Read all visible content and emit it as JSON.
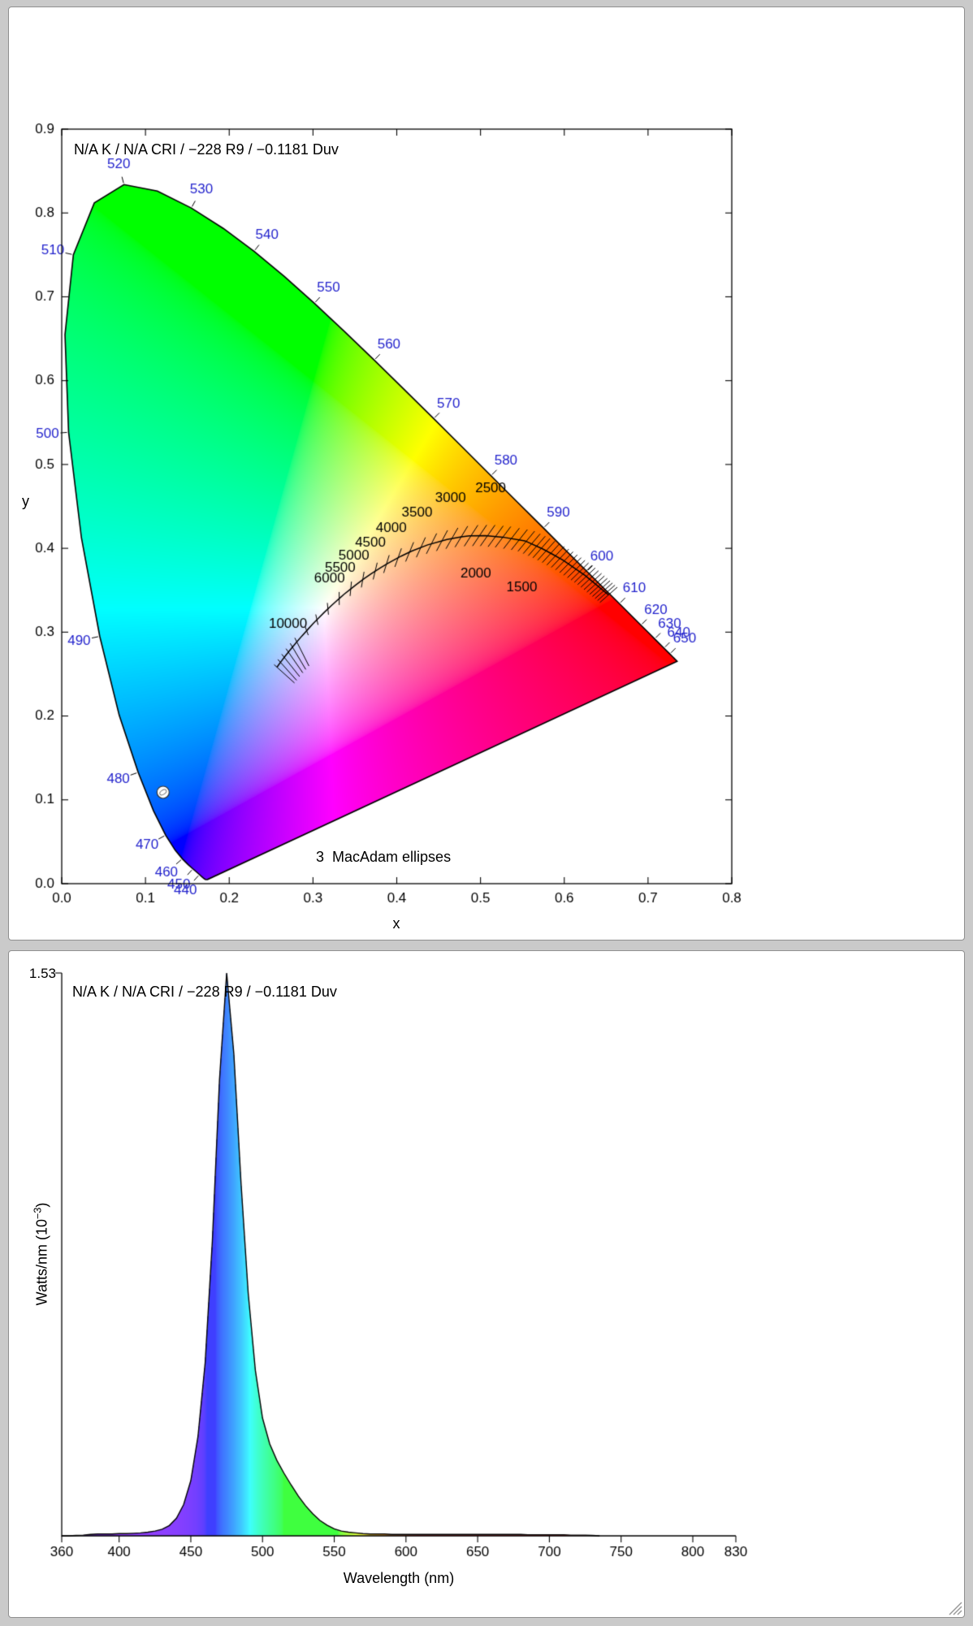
{
  "colors": {
    "page_background": "#cacaca",
    "panel_background": "#ffffff",
    "panel_border": "#8f8f8f",
    "wavelength_label_color": "#2222cc",
    "axis_color": "#000000"
  },
  "chart_data": [
    {
      "type": "scatter",
      "name": "CIE 1931 chromaticity diagram",
      "title": "N/A K / N/A CRI / −228 R9 / −0.1181 Duv",
      "xlabel": "x",
      "ylabel": "y",
      "annotation": "3  MacAdam ellipses",
      "xlim": [
        0.0,
        0.8
      ],
      "ylim": [
        0.0,
        0.9
      ],
      "xticks": [
        0.0,
        0.1,
        0.2,
        0.3,
        0.4,
        0.5,
        0.6,
        0.7,
        0.8
      ],
      "yticks": [
        0.0,
        0.1,
        0.2,
        0.3,
        0.4,
        0.5,
        0.6,
        0.7,
        0.8,
        0.9
      ],
      "grid": false,
      "point": {
        "x": 0.121,
        "y": 0.109
      },
      "label_color": "#2222cc",
      "wavelength_labels": [
        440,
        450,
        460,
        470,
        480,
        490,
        500,
        510,
        520,
        530,
        540,
        550,
        560,
        570,
        580,
        590,
        600,
        610,
        620,
        630,
        640,
        650
      ],
      "cct_labels": [
        [
          1500,
          "below"
        ],
        [
          2000,
          "below"
        ],
        [
          2500,
          "above"
        ],
        [
          3000,
          "above"
        ],
        [
          3500,
          "above"
        ],
        [
          4000,
          "above"
        ],
        [
          4500,
          "above"
        ],
        [
          5000,
          "above"
        ],
        [
          5500,
          "above"
        ],
        [
          6000,
          "above"
        ],
        [
          10000,
          "above"
        ]
      ],
      "isotherm_mired_range": [
        120,
        1000
      ],
      "isotherm_mired_step": 20,
      "long_isotherms_mired": [
        50,
        60,
        70,
        80,
        90,
        100
      ],
      "spectral_locus": [
        [
          380,
          0.1741,
          0.005
        ],
        [
          385,
          0.174,
          0.005
        ],
        [
          390,
          0.1738,
          0.0049
        ],
        [
          395,
          0.1736,
          0.0049
        ],
        [
          400,
          0.1733,
          0.0048
        ],
        [
          405,
          0.173,
          0.0048
        ],
        [
          410,
          0.1726,
          0.0048
        ],
        [
          415,
          0.1721,
          0.0048
        ],
        [
          420,
          0.1714,
          0.0051
        ],
        [
          425,
          0.1703,
          0.0058
        ],
        [
          430,
          0.1689,
          0.0069
        ],
        [
          435,
          0.1669,
          0.0086
        ],
        [
          440,
          0.1644,
          0.0109
        ],
        [
          445,
          0.1611,
          0.0138
        ],
        [
          450,
          0.1566,
          0.0177
        ],
        [
          455,
          0.151,
          0.0227
        ],
        [
          460,
          0.144,
          0.0297
        ],
        [
          465,
          0.1355,
          0.0399
        ],
        [
          470,
          0.1241,
          0.0578
        ],
        [
          475,
          0.1096,
          0.0868
        ],
        [
          480,
          0.0913,
          0.1327
        ],
        [
          485,
          0.0687,
          0.2007
        ],
        [
          490,
          0.0454,
          0.295
        ],
        [
          495,
          0.0235,
          0.4127
        ],
        [
          500,
          0.0082,
          0.5384
        ],
        [
          505,
          0.0039,
          0.6548
        ],
        [
          510,
          0.0139,
          0.7502
        ],
        [
          515,
          0.0389,
          0.812
        ],
        [
          520,
          0.0743,
          0.8338
        ],
        [
          525,
          0.1142,
          0.8262
        ],
        [
          530,
          0.1547,
          0.8059
        ],
        [
          535,
          0.1929,
          0.7816
        ],
        [
          540,
          0.2296,
          0.7543
        ],
        [
          545,
          0.2658,
          0.7243
        ],
        [
          550,
          0.3016,
          0.6923
        ],
        [
          555,
          0.3373,
          0.6589
        ],
        [
          560,
          0.3731,
          0.6245
        ],
        [
          565,
          0.4087,
          0.5896
        ],
        [
          570,
          0.4441,
          0.5547
        ],
        [
          575,
          0.4788,
          0.5202
        ],
        [
          580,
          0.5125,
          0.4866
        ],
        [
          585,
          0.5448,
          0.4544
        ],
        [
          590,
          0.5752,
          0.4242
        ],
        [
          595,
          0.6029,
          0.3965
        ],
        [
          600,
          0.627,
          0.3725
        ],
        [
          605,
          0.6482,
          0.3514
        ],
        [
          610,
          0.6658,
          0.334
        ],
        [
          615,
          0.6801,
          0.3197
        ],
        [
          620,
          0.6915,
          0.3083
        ],
        [
          625,
          0.7006,
          0.2993
        ],
        [
          630,
          0.7079,
          0.292
        ],
        [
          635,
          0.714,
          0.2859
        ],
        [
          640,
          0.719,
          0.2809
        ],
        [
          645,
          0.723,
          0.277
        ],
        [
          650,
          0.726,
          0.274
        ],
        [
          655,
          0.7283,
          0.2717
        ],
        [
          660,
          0.73,
          0.27
        ],
        [
          665,
          0.7311,
          0.2689
        ],
        [
          670,
          0.732,
          0.268
        ],
        [
          675,
          0.7327,
          0.2673
        ],
        [
          680,
          0.7334,
          0.2666
        ],
        [
          685,
          0.734,
          0.266
        ],
        [
          690,
          0.7344,
          0.2656
        ],
        [
          695,
          0.7346,
          0.2654
        ],
        [
          700,
          0.7347,
          0.2653
        ]
      ],
      "planckian_locus": [
        [
          1000,
          0.6528,
          0.3444
        ],
        [
          1200,
          0.625,
          0.3676
        ],
        [
          1400,
          0.5984,
          0.3859
        ],
        [
          1500,
          0.5857,
          0.3931
        ],
        [
          1600,
          0.574,
          0.3994
        ],
        [
          1800,
          0.553,
          0.4089
        ],
        [
          2000,
          0.5267,
          0.4133
        ],
        [
          2200,
          0.5056,
          0.4152
        ],
        [
          2400,
          0.4868,
          0.4148
        ],
        [
          2500,
          0.477,
          0.4137
        ],
        [
          2700,
          0.4599,
          0.4106
        ],
        [
          3000,
          0.4369,
          0.4041
        ],
        [
          3300,
          0.4173,
          0.3965
        ],
        [
          3500,
          0.4053,
          0.3907
        ],
        [
          3800,
          0.3898,
          0.3823
        ],
        [
          4000,
          0.3805,
          0.3768
        ],
        [
          4300,
          0.3692,
          0.3694
        ],
        [
          4500,
          0.3608,
          0.3636
        ],
        [
          4800,
          0.3512,
          0.3564
        ],
        [
          5000,
          0.3451,
          0.3516
        ],
        [
          5300,
          0.337,
          0.3451
        ],
        [
          5500,
          0.3325,
          0.3411
        ],
        [
          5800,
          0.3261,
          0.3355
        ],
        [
          6000,
          0.3221,
          0.3318
        ],
        [
          6500,
          0.3135,
          0.3237
        ],
        [
          7000,
          0.3064,
          0.3166
        ],
        [
          7500,
          0.3004,
          0.3104
        ],
        [
          8000,
          0.2952,
          0.3048
        ],
        [
          9000,
          0.2869,
          0.2956
        ],
        [
          10000,
          0.2807,
          0.2884
        ],
        [
          11000,
          0.2759,
          0.2827
        ],
        [
          12000,
          0.2721,
          0.278
        ],
        [
          14000,
          0.2663,
          0.2707
        ],
        [
          16000,
          0.2622,
          0.2653
        ],
        [
          18000,
          0.2592,
          0.2613
        ],
        [
          20000,
          0.257,
          0.2582
        ]
      ]
    },
    {
      "type": "area",
      "name": "Spectral power distribution",
      "title": "N/A K / N/A CRI / −228 R9 / −0.1181 Duv",
      "xlabel": "Wavelength (nm)",
      "ylabel": "Watts/nm (10^-3)",
      "ylabel_main": "Watts/nm (10",
      "ylabel_sup": "−3",
      "ylabel_end": ")",
      "ymax_label": "1.53",
      "xlim": [
        360,
        830
      ],
      "ylim": [
        0,
        1.53
      ],
      "xticks": [
        360,
        400,
        450,
        500,
        550,
        600,
        650,
        700,
        750,
        800,
        830
      ],
      "grid": false,
      "spd": [
        [
          360,
          0
        ],
        [
          365,
          0
        ],
        [
          370,
          0.001
        ],
        [
          375,
          0.002
        ],
        [
          380,
          0.004
        ],
        [
          385,
          0.005
        ],
        [
          390,
          0.005
        ],
        [
          395,
          0.005
        ],
        [
          400,
          0.006
        ],
        [
          405,
          0.006
        ],
        [
          410,
          0.007
        ],
        [
          415,
          0.008
        ],
        [
          420,
          0.01
        ],
        [
          425,
          0.013
        ],
        [
          430,
          0.018
        ],
        [
          435,
          0.028
        ],
        [
          440,
          0.048
        ],
        [
          445,
          0.085
        ],
        [
          450,
          0.15
        ],
        [
          455,
          0.27
        ],
        [
          460,
          0.47
        ],
        [
          465,
          0.8
        ],
        [
          470,
          1.24
        ],
        [
          475,
          1.53
        ],
        [
          480,
          1.31
        ],
        [
          485,
          0.96
        ],
        [
          490,
          0.66
        ],
        [
          495,
          0.45
        ],
        [
          500,
          0.32
        ],
        [
          505,
          0.25
        ],
        [
          510,
          0.205
        ],
        [
          515,
          0.17
        ],
        [
          520,
          0.138
        ],
        [
          525,
          0.108
        ],
        [
          530,
          0.082
        ],
        [
          535,
          0.06
        ],
        [
          540,
          0.042
        ],
        [
          545,
          0.029
        ],
        [
          550,
          0.019
        ],
        [
          555,
          0.013
        ],
        [
          560,
          0.01
        ],
        [
          565,
          0.008
        ],
        [
          570,
          0.006
        ],
        [
          575,
          0.005
        ],
        [
          580,
          0.005
        ],
        [
          585,
          0.005
        ],
        [
          590,
          0.004
        ],
        [
          595,
          0.004
        ],
        [
          600,
          0.004
        ],
        [
          605,
          0.004
        ],
        [
          610,
          0.004
        ],
        [
          615,
          0.004
        ],
        [
          620,
          0.004
        ],
        [
          625,
          0.004
        ],
        [
          630,
          0.004
        ],
        [
          635,
          0.004
        ],
        [
          640,
          0.004
        ],
        [
          645,
          0.004
        ],
        [
          650,
          0.004
        ],
        [
          655,
          0.004
        ],
        [
          660,
          0.004
        ],
        [
          665,
          0.004
        ],
        [
          670,
          0.004
        ],
        [
          675,
          0.004
        ],
        [
          680,
          0.004
        ],
        [
          685,
          0.003
        ],
        [
          690,
          0.003
        ],
        [
          695,
          0.003
        ],
        [
          700,
          0.003
        ],
        [
          705,
          0.003
        ],
        [
          710,
          0.003
        ],
        [
          715,
          0.002
        ],
        [
          720,
          0.002
        ],
        [
          725,
          0.002
        ],
        [
          730,
          0.001
        ],
        [
          735,
          0
        ]
      ]
    }
  ]
}
